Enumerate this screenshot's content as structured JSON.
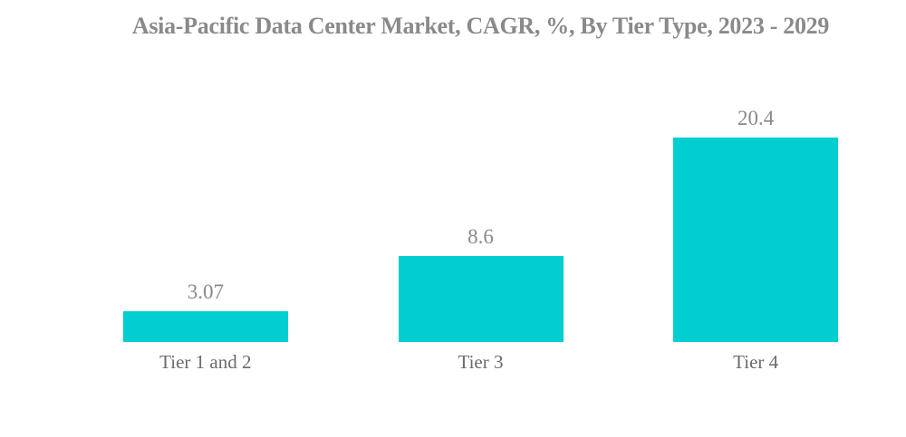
{
  "chart_data": {
    "type": "bar",
    "title": "Asia-Pacific Data Center Market, CAGR, %, By Tier Type, 2023 - 2029",
    "categories": [
      "Tier 1 and 2",
      "Tier 3",
      "Tier 4"
    ],
    "values": [
      3.07,
      8.6,
      20.4
    ],
    "value_labels": [
      "3.07",
      "8.6",
      "20.4"
    ],
    "xlabel": "",
    "ylabel": "",
    "ylim": [
      0,
      25
    ],
    "grid": false,
    "legend": "none",
    "axis_lines": "none",
    "orientation": "vertical"
  },
  "colors": {
    "bar_fill": "#00CED1",
    "title_text": "#8A8A8A",
    "value_label_text": "#8A8A8A",
    "category_label_text": "#6B6B6B",
    "background": "#FFFFFF"
  }
}
